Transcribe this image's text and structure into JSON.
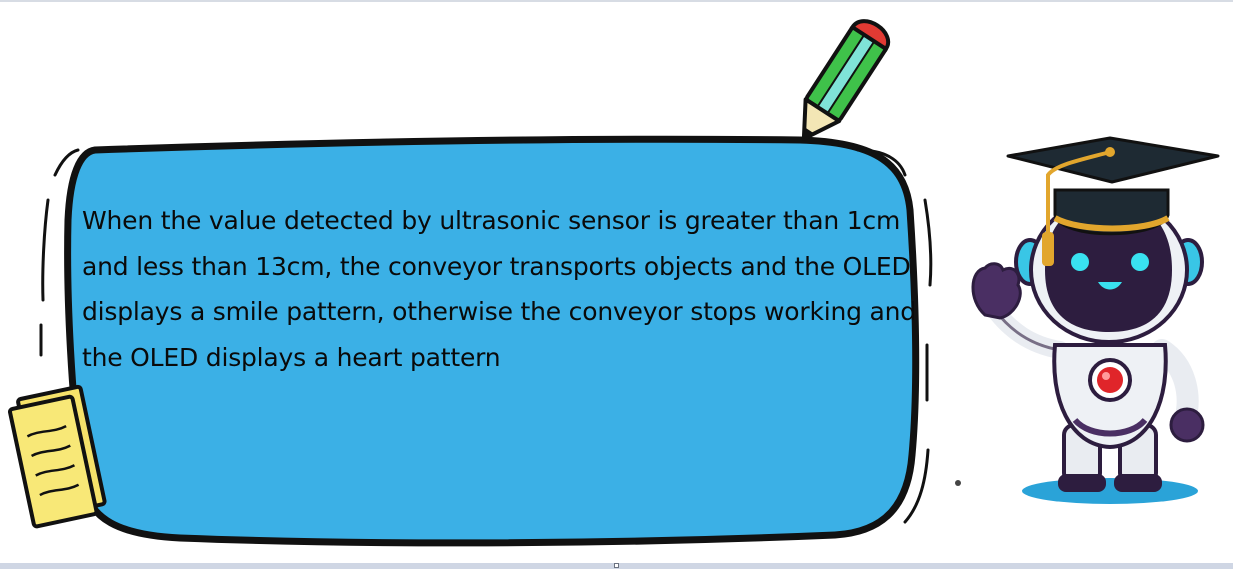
{
  "bubble": {
    "text": "When the value detected by ultrasonic sensor is greater than 1cm and less than 13cm, the conveyor transports objects and the OLED displays a smile pattern, otherwise the conveyor stops working and the OLED displays a heart pattern"
  },
  "colors": {
    "bubble_fill": "#3bb0e6",
    "outline": "#111111",
    "pencil_body": "#3fc24a",
    "pencil_stripe": "#7fe3d8",
    "pencil_eraser": "#e23a33",
    "note_fill": "#f6e26a",
    "robot_head": "#2d1d3f",
    "robot_eyes": "#39e1f0",
    "robot_core": "#e0252a",
    "cap": "#1e2a33",
    "tassel": "#e2a62d",
    "shadow": "#2aa3d8"
  },
  "icons": [
    "pencil-icon",
    "notepad-icon",
    "robot-graduate-icon"
  ]
}
